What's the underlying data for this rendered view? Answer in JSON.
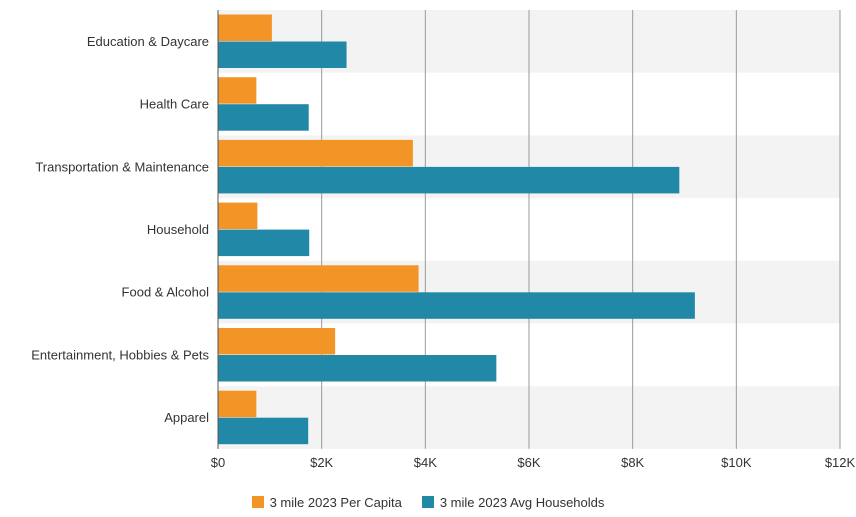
{
  "chart_data": {
    "type": "bar",
    "orientation": "horizontal",
    "categories": [
      "Education & Daycare",
      "Health Care",
      "Transportation & Maintenance",
      "Household",
      "Food & Alcohol",
      "Entertainment, Hobbies & Pets",
      "Apparel"
    ],
    "series": [
      {
        "name": "3 mile 2023 Per Capita",
        "color": "#f39426",
        "values": [
          1040,
          740,
          3760,
          760,
          3870,
          2260,
          740
        ]
      },
      {
        "name": "3 mile 2023 Avg Households",
        "color": "#2288a7",
        "values": [
          2480,
          1750,
          8900,
          1760,
          9200,
          5370,
          1740
        ]
      }
    ],
    "xlim": [
      0,
      12000
    ],
    "x_ticks": [
      0,
      2000,
      4000,
      6000,
      8000,
      10000,
      12000
    ],
    "x_tick_labels": [
      "$0",
      "$2K",
      "$4K",
      "$6K",
      "$8K",
      "$10K",
      "$12K"
    ],
    "grid": "vertical",
    "band_color": "#f3f3f3",
    "legend_position": "bottom-center"
  }
}
